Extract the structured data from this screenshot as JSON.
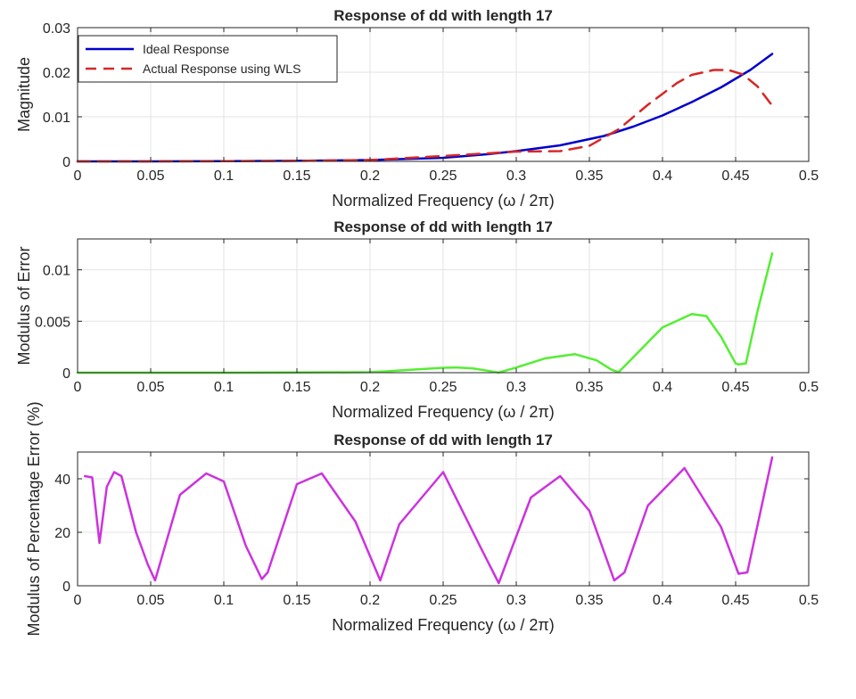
{
  "chart_data": [
    {
      "type": "line",
      "title": "Response of dd with length 17",
      "xlabel": "Normalized Frequency (ω / 2π)",
      "ylabel": "Magnitude",
      "xlim": [
        0,
        0.5
      ],
      "ylim": [
        0,
        0.03
      ],
      "xticks": [
        "0",
        "0.05",
        "0.1",
        "0.15",
        "0.2",
        "0.25",
        "0.3",
        "0.35",
        "0.4",
        "0.45",
        "0.5"
      ],
      "yticks": [
        "0",
        "0.01",
        "0.02",
        "0.03"
      ],
      "grid": true,
      "legend": "top-left",
      "series": [
        {
          "name": "Ideal Response",
          "color": "#0000cc",
          "dash": "solid",
          "x": [
            0,
            0.05,
            0.1,
            0.15,
            0.2,
            0.25,
            0.28,
            0.3,
            0.33,
            0.36,
            0.38,
            0.4,
            0.42,
            0.44,
            0.46,
            0.475
          ],
          "y": [
            0,
            1e-05,
            4e-05,
            0.00012,
            0.0003,
            0.0008,
            0.0016,
            0.0023,
            0.0036,
            0.0057,
            0.0078,
            0.0103,
            0.0133,
            0.0166,
            0.0205,
            0.0241
          ]
        },
        {
          "name": "Actual Response using WLS",
          "color": "#d62728",
          "dash": "dashed",
          "x": [
            0,
            0.05,
            0.1,
            0.15,
            0.2,
            0.25,
            0.28,
            0.3,
            0.33,
            0.35,
            0.37,
            0.39,
            0.41,
            0.42,
            0.435,
            0.445,
            0.455,
            0.465,
            0.475
          ],
          "y": [
            0,
            1e-05,
            4e-05,
            0.00012,
            0.0003,
            0.0012,
            0.0018,
            0.0022,
            0.0023,
            0.0035,
            0.0072,
            0.0127,
            0.0176,
            0.0194,
            0.0205,
            0.0205,
            0.0195,
            0.0168,
            0.0125
          ]
        }
      ]
    },
    {
      "type": "line",
      "title": "Response of dd with length 17",
      "xlabel": "Normalized Frequency (ω / 2π)",
      "ylabel": "Modulus of Error",
      "xlim": [
        0,
        0.5
      ],
      "ylim": [
        0,
        0.013
      ],
      "xticks": [
        "0",
        "0.05",
        "0.1",
        "0.15",
        "0.2",
        "0.25",
        "0.3",
        "0.35",
        "0.4",
        "0.45",
        "0.5"
      ],
      "yticks": [
        "0",
        "0.005",
        "0.01"
      ],
      "grid": true,
      "series": [
        {
          "color": "#55ee33",
          "dash": "solid",
          "x": [
            0,
            0.05,
            0.1,
            0.15,
            0.2,
            0.21,
            0.23,
            0.25,
            0.26,
            0.27,
            0.28,
            0.288,
            0.3,
            0.32,
            0.34,
            0.355,
            0.365,
            0.37,
            0.38,
            0.4,
            0.42,
            0.43,
            0.44,
            0.45,
            0.452,
            0.457,
            0.465,
            0.475
          ],
          "y": [
            0,
            0,
            0,
            2e-05,
            5e-05,
            0.00012,
            0.0003,
            0.00048,
            0.0005,
            0.00042,
            0.0002,
            1e-05,
            0.0005,
            0.0014,
            0.0018,
            0.0012,
            0.0003,
            5e-05,
            0.0015,
            0.0044,
            0.0057,
            0.0055,
            0.0035,
            0.0009,
            0.0008,
            0.0009,
            0.006,
            0.0116
          ]
        }
      ]
    },
    {
      "type": "line",
      "title": "Response of dd with length 17",
      "xlabel": "Normalized Frequency (ω / 2π)",
      "ylabel": "Modulus of Percentage Error (%)",
      "xlim": [
        0,
        0.5
      ],
      "ylim": [
        0,
        50
      ],
      "xticks": [
        "0",
        "0.05",
        "0.1",
        "0.15",
        "0.2",
        "0.25",
        "0.3",
        "0.35",
        "0.4",
        "0.45",
        "0.5"
      ],
      "yticks": [
        "0",
        "20",
        "40"
      ],
      "grid": true,
      "series": [
        {
          "color": "#cc33dd",
          "dash": "solid",
          "x": [
            0.005,
            0.01,
            0.015,
            0.02,
            0.025,
            0.03,
            0.04,
            0.048,
            0.053,
            0.07,
            0.088,
            0.1,
            0.115,
            0.126,
            0.13,
            0.15,
            0.167,
            0.19,
            0.207,
            0.22,
            0.25,
            0.275,
            0.288,
            0.31,
            0.33,
            0.35,
            0.367,
            0.374,
            0.39,
            0.415,
            0.44,
            0.452,
            0.458,
            0.475
          ],
          "y": [
            41,
            40.5,
            16,
            37,
            42.5,
            41,
            20,
            8,
            2,
            34,
            42,
            39,
            15,
            2.5,
            5,
            38,
            42,
            24,
            2,
            23,
            42.5,
            15,
            1,
            33,
            41,
            28,
            2,
            5,
            30,
            44,
            22,
            4.5,
            5,
            48
          ]
        }
      ]
    }
  ]
}
